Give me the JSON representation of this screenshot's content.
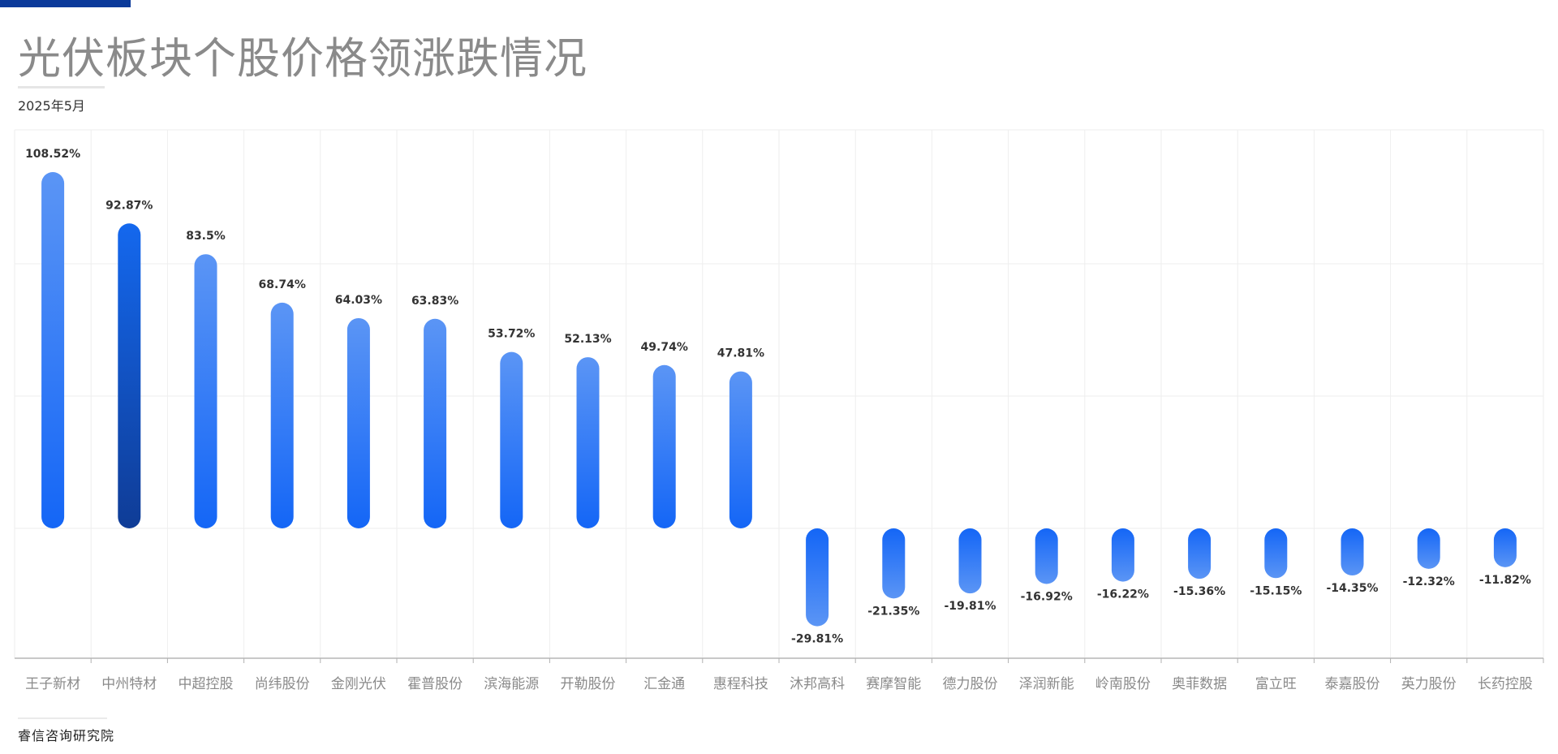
{
  "header": {
    "title": "光伏板块个股价格领涨跌情况",
    "subtitle": "2025年5月"
  },
  "footer": {
    "source": "睿信咨询研究院"
  },
  "colors": {
    "accent_bar": "#0b3a9a",
    "bar_light": "#5591f5",
    "bar_mid": "#1a6af5",
    "bar_dark": "#0f3c96",
    "grid": "#ececec",
    "axis": "#c8c8c8",
    "label": "#333333",
    "tick_label": "#8a8a8a"
  },
  "chart_data": {
    "type": "bar",
    "title": "光伏板块个股价格领涨跌情况",
    "subtitle": "2025年5月",
    "xlabel": "",
    "ylabel": "",
    "unit": "%",
    "grid": true,
    "legend": null,
    "categories": [
      "王子新材",
      "中州特材",
      "中超控股",
      "尚纬股份",
      "金刚光伏",
      "霍普股份",
      "滨海能源",
      "开勒股份",
      "汇金通",
      "惠程科技",
      "沐邦高科",
      "赛摩智能",
      "德力股份",
      "泽润新能",
      "岭南股份",
      "奥菲数据",
      "富立旺",
      "泰嘉股份",
      "英力股份",
      "长药控股"
    ],
    "values": [
      108.52,
      92.87,
      83.5,
      68.74,
      64.03,
      63.83,
      53.72,
      52.13,
      49.74,
      47.81,
      -29.81,
      -21.35,
      -19.81,
      -16.92,
      -16.22,
      -15.36,
      -15.15,
      -14.35,
      -12.32,
      -11.82
    ],
    "value_labels": [
      "108.52%",
      "92.87%",
      "83.5%",
      "68.74%",
      "64.03%",
      "63.83%",
      "53.72%",
      "52.13%",
      "49.74%",
      "47.81%",
      "-29.81%",
      "-21.35%",
      "-19.81%",
      "-16.92%",
      "-16.22%",
      "-15.36%",
      "-15.15%",
      "-14.35%",
      "-12.32%",
      "-11.82%"
    ],
    "highlighted_index": 1,
    "ylim": [
      -40,
      120
    ]
  }
}
